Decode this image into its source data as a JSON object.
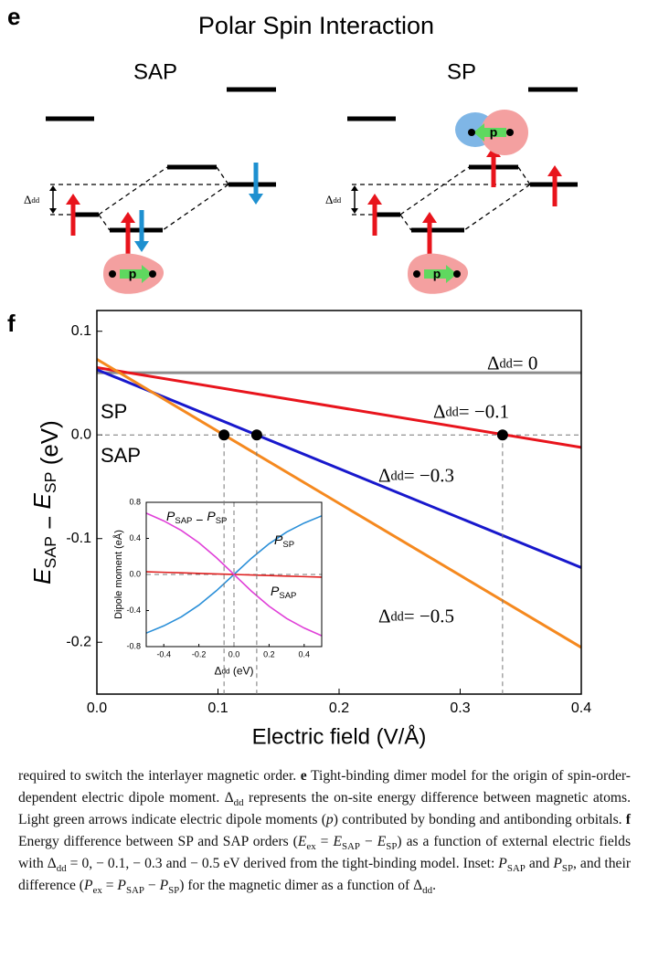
{
  "panel_e": {
    "label": "e",
    "title": "Polar Spin Interaction",
    "diagrams": [
      {
        "label": "SAP",
        "delta": [
          "Δ",
          {
            "sub": "dd"
          }
        ],
        "dipoles": [
          "p"
        ]
      },
      {
        "label": "SP",
        "delta": [
          "Δ",
          {
            "sub": "dd"
          }
        ],
        "dipoles": [
          "p",
          "p"
        ]
      }
    ]
  },
  "chart_data": [
    {
      "type": "line",
      "panel_label": "f",
      "xlabel": "Electric field (V/Å)",
      "ylabel": [
        {
          "i": "E"
        },
        {
          "sub": "SAP"
        },
        " − ",
        {
          "i": "E"
        },
        {
          "sub": "SP"
        },
        " (eV)"
      ],
      "xlim": [
        0,
        0.4
      ],
      "ylim": [
        -0.25,
        0.12
      ],
      "xticks": [
        {
          "value": 0,
          "label": "0.0"
        },
        0.1,
        0.2,
        0.3,
        0.4
      ],
      "yticks": [
        -0.2,
        -0.1,
        {
          "value": 0,
          "label": "0.0"
        },
        0.1
      ],
      "x": [
        0,
        0.4
      ],
      "series": [
        {
          "name": [
            "Δ",
            {
              "sub": "dd"
            },
            "= 0"
          ],
          "color": "#8c8c8c",
          "values": [
            0.06,
            0.06
          ]
        },
        {
          "name": [
            "Δ",
            {
              "sub": "dd"
            },
            "= −0.1"
          ],
          "color": "#e8141c",
          "values": [
            0.065,
            -0.012
          ]
        },
        {
          "name": [
            "Δ",
            {
              "sub": "dd"
            },
            "= −0.3"
          ],
          "color": "#1818cc",
          "values": [
            0.063,
            -0.128
          ]
        },
        {
          "name": [
            "Δ",
            {
              "sub": "dd"
            },
            "= −0.5"
          ],
          "color": "#f5891f",
          "values": [
            0.073,
            -0.205
          ]
        }
      ],
      "annotations": [
        "SP",
        "SAP"
      ],
      "crossings": {
        "x": [
          0.105,
          0.132,
          0.335
        ],
        "y": [
          0,
          0,
          0
        ]
      }
    },
    {
      "type": "line",
      "xlabel": [
        "Δ",
        {
          "sub": "dd"
        },
        " (eV)"
      ],
      "ylabel": "Dipole moment (eÅ)",
      "xlim": [
        -0.5,
        0.5
      ],
      "ylim": [
        -0.8,
        0.8
      ],
      "xticks": [
        -0.4,
        -0.2,
        {
          "value": 0,
          "label": "0.0"
        },
        0.2,
        0.4
      ],
      "yticks": [
        -0.8,
        -0.4,
        {
          "value": 0,
          "label": "0.0"
        },
        0.4,
        0.8
      ],
      "x": [
        -0.5,
        -0.4,
        -0.3,
        -0.2,
        -0.1,
        0,
        0.1,
        0.2,
        0.3,
        0.4,
        0.5
      ],
      "series": [
        {
          "name": [
            {
              "i": "P"
            },
            {
              "sub": "SP"
            }
          ],
          "color": "#2a8fd8",
          "values": [
            -0.65,
            -0.57,
            -0.47,
            -0.34,
            -0.18,
            0,
            0.18,
            0.34,
            0.47,
            0.57,
            0.65
          ]
        },
        {
          "name": [
            {
              "i": "P"
            },
            {
              "sub": "SAP"
            }
          ],
          "color": "#e02020",
          "values": [
            0.03,
            0.024,
            0.018,
            0.012,
            0.006,
            0,
            -0.006,
            -0.012,
            -0.018,
            -0.024,
            -0.03
          ]
        },
        {
          "name": [
            {
              "i": "P"
            },
            {
              "sub": "SAP"
            },
            " − ",
            {
              "i": "P"
            },
            {
              "sub": "SP"
            }
          ],
          "color": "#e040d8",
          "values": [
            0.68,
            0.594,
            0.488,
            0.352,
            0.186,
            0,
            -0.186,
            -0.352,
            -0.488,
            -0.594,
            -0.68
          ]
        }
      ]
    }
  ],
  "caption": [
    "required to switch the interlayer magnetic order. ",
    {
      "b": "e"
    },
    " Tight-binding dimer model for the origin of spin-order-dependent electric dipole moment. Δ",
    {
      "sub": "dd"
    },
    " represents the on-site energy difference between magnetic atoms. Light green arrows indicate electric dipole moments (",
    {
      "i": "p"
    },
    ") contributed by bonding and antibonding orbitals. ",
    {
      "b": "f"
    },
    " Energy difference between SP and SAP orders (",
    {
      "i": "E"
    },
    {
      "sub": "ex"
    },
    " = ",
    {
      "i": "E"
    },
    {
      "sub": "SAP"
    },
    " − ",
    {
      "i": "E"
    },
    {
      "sub": "SP"
    },
    ") as a function of external electric fields with Δ",
    {
      "sub": "dd"
    },
    " = 0, − 0.1, − 0.3 and − 0.5 eV derived from the tight-binding model. Inset: ",
    {
      "i": "P"
    },
    {
      "sub": "SAP"
    },
    " and ",
    {
      "i": "P"
    },
    {
      "sub": "SP"
    },
    ", and their difference (",
    {
      "i": "P"
    },
    {
      "sub": "ex"
    },
    " = ",
    {
      "i": "P"
    },
    {
      "sub": "SAP"
    },
    " − ",
    {
      "i": "P"
    },
    {
      "sub": "SP"
    },
    ") for the magnetic dimer as a function of Δ",
    {
      "sub": "dd"
    },
    "."
  ]
}
